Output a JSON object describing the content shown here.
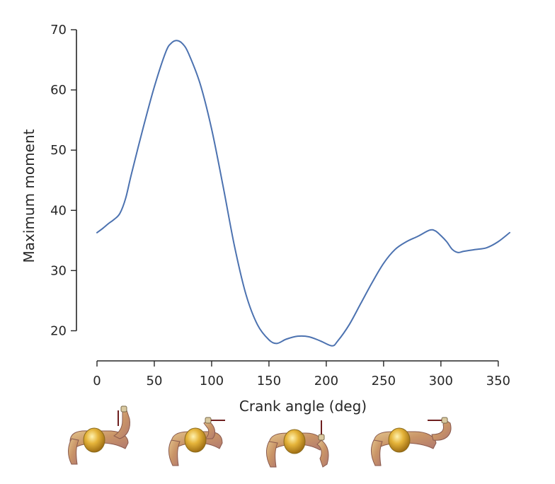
{
  "chart_data": {
    "type": "line",
    "title": "",
    "xlabel": "Crank angle (deg)",
    "ylabel": "Maximum moment",
    "xlim": [
      0,
      360
    ],
    "ylim": [
      15,
      70
    ],
    "x_ticks": [
      0,
      50,
      100,
      150,
      200,
      250,
      300,
      350
    ],
    "y_ticks": [
      20,
      30,
      40,
      50,
      60,
      70
    ],
    "grid": false,
    "series": [
      {
        "color": "#4c72b0",
        "x": [
          0,
          5,
          10,
          15,
          20,
          25,
          30,
          40,
          50,
          60,
          65,
          70,
          75,
          80,
          90,
          100,
          110,
          120,
          130,
          140,
          150,
          157,
          165,
          175,
          185,
          195,
          205,
          210,
          220,
          230,
          240,
          250,
          260,
          270,
          280,
          290,
          295,
          300,
          305,
          310,
          315,
          320,
          330,
          340,
          350,
          360
        ],
        "y": [
          36.3,
          37.0,
          37.8,
          38.5,
          39.5,
          42.0,
          46.0,
          53.5,
          60.5,
          66.3,
          67.8,
          68.2,
          67.6,
          66.0,
          61.0,
          53.5,
          44.0,
          34.0,
          26.0,
          21.0,
          18.5,
          17.9,
          18.6,
          19.1,
          19.0,
          18.3,
          17.5,
          18.3,
          21.0,
          24.5,
          28.0,
          31.2,
          33.5,
          34.8,
          35.7,
          36.7,
          36.6,
          35.8,
          34.8,
          33.5,
          33.0,
          33.2,
          33.5,
          33.8,
          34.8,
          36.3
        ]
      }
    ],
    "illustrations": [
      {
        "icon": "arm-pose-reaching-up-icon"
      },
      {
        "icon": "arm-pose-forward-icon"
      },
      {
        "icon": "arm-pose-down-icon"
      },
      {
        "icon": "arm-pose-back-icon"
      }
    ]
  }
}
